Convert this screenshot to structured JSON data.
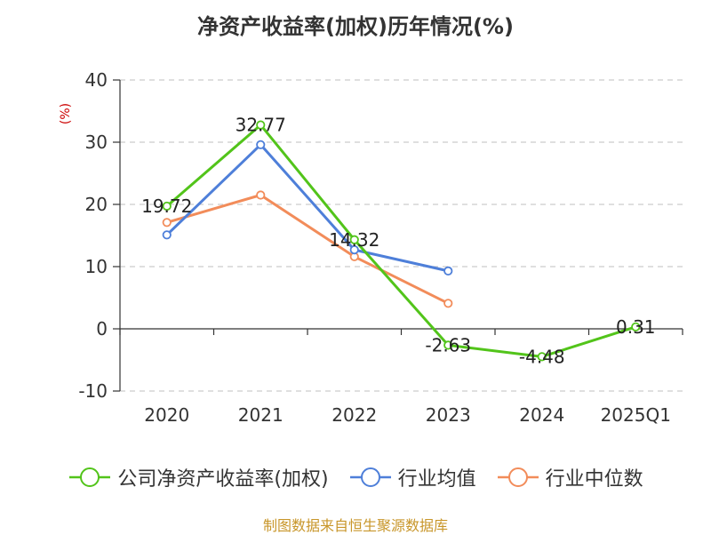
{
  "chart_data": {
    "type": "line",
    "title": "净资产收益率(加权)历年情况(%)",
    "ylabel": "(%)",
    "xlabel": "",
    "categories": [
      "2020",
      "2021",
      "2022",
      "2023",
      "2024",
      "2025Q1"
    ],
    "ylim": [
      -10,
      40
    ],
    "yticks": [
      -10,
      0,
      10,
      20,
      30,
      40
    ],
    "grid": true,
    "legend_position": "bottom",
    "series": [
      {
        "name": "公司净资产收益率(加权)",
        "color": "#52c41a",
        "values": [
          19.72,
          32.77,
          14.32,
          -2.63,
          -4.48,
          0.31
        ],
        "labels": [
          "19.72",
          "32.77",
          "14.32",
          "-2.63",
          "-4.48",
          "0.31"
        ]
      },
      {
        "name": "行业均值",
        "color": "#4e7fd9",
        "values": [
          15.1,
          29.6,
          12.7,
          9.3,
          null,
          null
        ]
      },
      {
        "name": "行业中位数",
        "color": "#f28c5a",
        "values": [
          17.1,
          21.5,
          11.6,
          4.1,
          null,
          null
        ]
      }
    ]
  },
  "source": "制图数据来自恒生聚源数据库"
}
